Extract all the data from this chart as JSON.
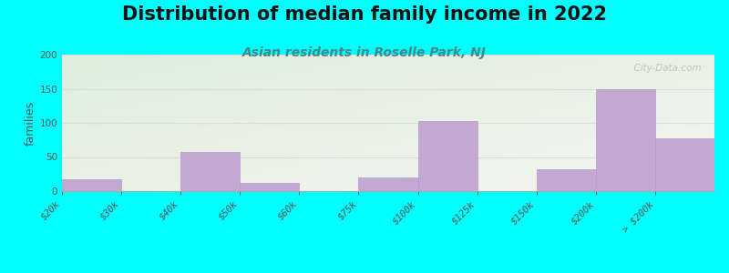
{
  "title": "Distribution of median family income in 2022",
  "subtitle": "Asian residents in Roselle Park, NJ",
  "ylabel": "families",
  "background_color": "#00FFFF",
  "plot_bg_left_top": "#ddeedd",
  "plot_bg_right_bottom": "#f4f4ee",
  "bar_color": "#c4a8d4",
  "bar_edge_color": "#b898c8",
  "tick_labels": [
    "$20k",
    "$30k",
    "$40k",
    "$50k",
    "$60k",
    "$75k",
    "$100k",
    "$125k",
    "$150k",
    "$200k",
    "> $200k"
  ],
  "values": [
    17,
    0,
    58,
    12,
    0,
    20,
    103,
    0,
    32,
    149,
    78
  ],
  "ylim": [
    0,
    200
  ],
  "yticks": [
    0,
    50,
    100,
    150,
    200
  ],
  "watermark": "  City-Data.com",
  "title_fontsize": 15,
  "subtitle_fontsize": 10,
  "ylabel_fontsize": 9,
  "tick_fontsize": 7.5
}
